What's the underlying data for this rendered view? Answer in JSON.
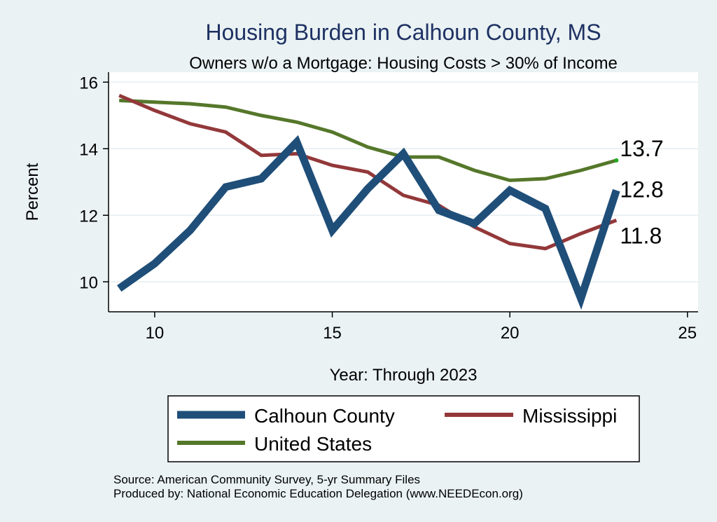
{
  "chart_data": {
    "type": "line",
    "title": "Housing Burden in Calhoun County, MS",
    "subtitle": "Owners w/o a Mortgage: Housing Costs > 30% of Income",
    "xlabel": "Year: Through 2023",
    "ylabel": "Percent",
    "xlim": [
      8.7,
      25.3
    ],
    "ylim": [
      9.1,
      16.3
    ],
    "xticks": [
      10,
      15,
      20,
      25
    ],
    "yticks": [
      10,
      12,
      14,
      16
    ],
    "grid": true,
    "x": [
      9,
      10,
      11,
      12,
      13,
      14,
      15,
      16,
      17,
      18,
      19,
      20,
      21,
      22,
      23
    ],
    "series": [
      {
        "name": "Calhoun County",
        "color": "#1f4e79",
        "end_label": "12.8",
        "values": [
          9.8,
          10.55,
          11.55,
          12.85,
          13.1,
          14.2,
          11.55,
          12.8,
          13.85,
          12.15,
          11.75,
          12.75,
          12.2,
          9.5,
          12.75
        ]
      },
      {
        "name": "Mississippi",
        "color": "#93383a",
        "end_label": "11.8",
        "values": [
          15.6,
          15.15,
          14.75,
          14.5,
          13.8,
          13.85,
          13.5,
          13.3,
          12.6,
          12.3,
          11.65,
          11.15,
          11.0,
          11.45,
          11.85
        ]
      },
      {
        "name": "United States",
        "color": "#55772a",
        "end_label": "13.7",
        "values": [
          15.45,
          15.4,
          15.35,
          15.25,
          15.0,
          14.8,
          14.5,
          14.05,
          13.75,
          13.75,
          13.35,
          13.05,
          13.1,
          13.35,
          13.65
        ]
      }
    ],
    "legend": [
      "Calhoun County",
      "Mississippi",
      "United States"
    ],
    "legend_position": "bottom"
  },
  "footer": {
    "source": "Source: American Community Survey, 5-yr Summary Files",
    "produced_by": "Produced by: National Economic Education Delegation (www.NEEDEcon.org)"
  },
  "colors": {
    "background": "#eaf2f3",
    "plot_bg": "#ffffff",
    "title": "#1e3163",
    "grid": "#e6eef0"
  }
}
